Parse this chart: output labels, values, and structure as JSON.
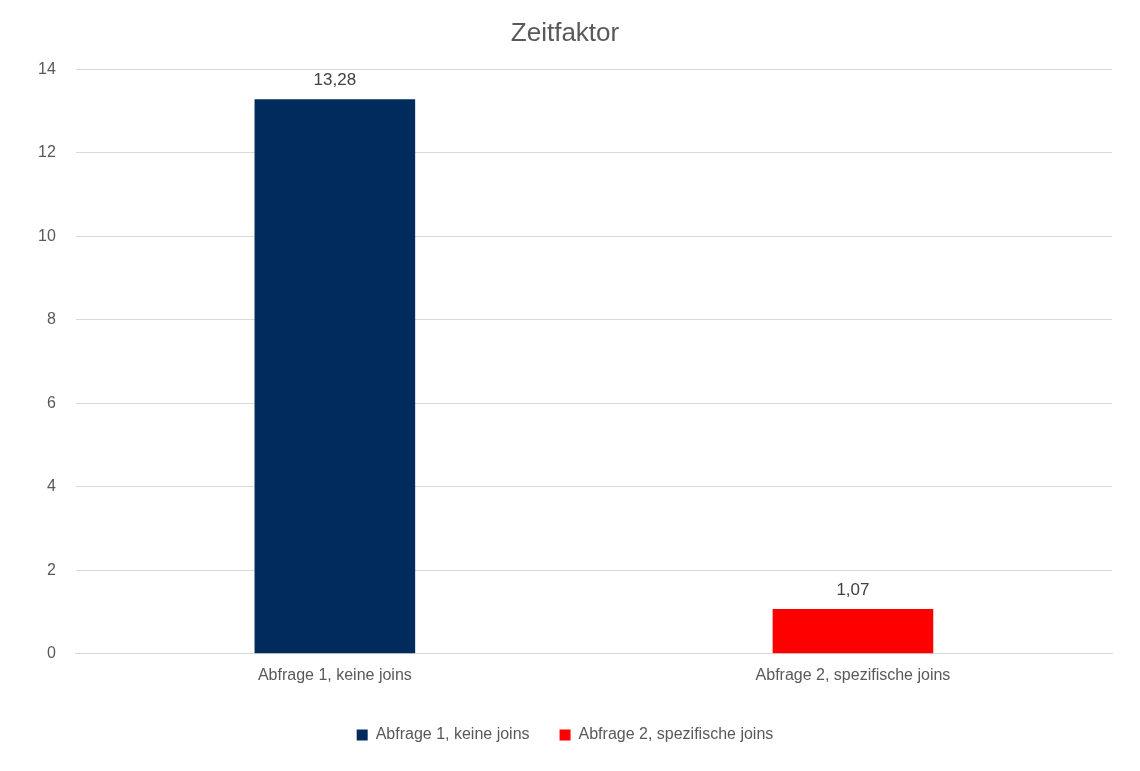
{
  "chart_data": {
    "type": "bar",
    "title": "Zeitfaktor",
    "categories": [
      "Abfrage 1, keine joins",
      "Abfrage 2, spezifische joins"
    ],
    "series": [
      {
        "name": "Abfrage 1, keine joins",
        "color": "#002b5c",
        "values": [
          13.28,
          null
        ],
        "value_labels": [
          "13,28",
          null
        ]
      },
      {
        "name": "Abfrage 2, spezifische joins",
        "color": "#ff0000",
        "values": [
          null,
          1.07
        ],
        "value_labels": [
          null,
          "1,07"
        ]
      }
    ],
    "ylim": [
      0,
      14
    ],
    "yticks": [
      0,
      2,
      4,
      6,
      8,
      10,
      12,
      14
    ],
    "grid": "y",
    "legend": "bottom"
  }
}
